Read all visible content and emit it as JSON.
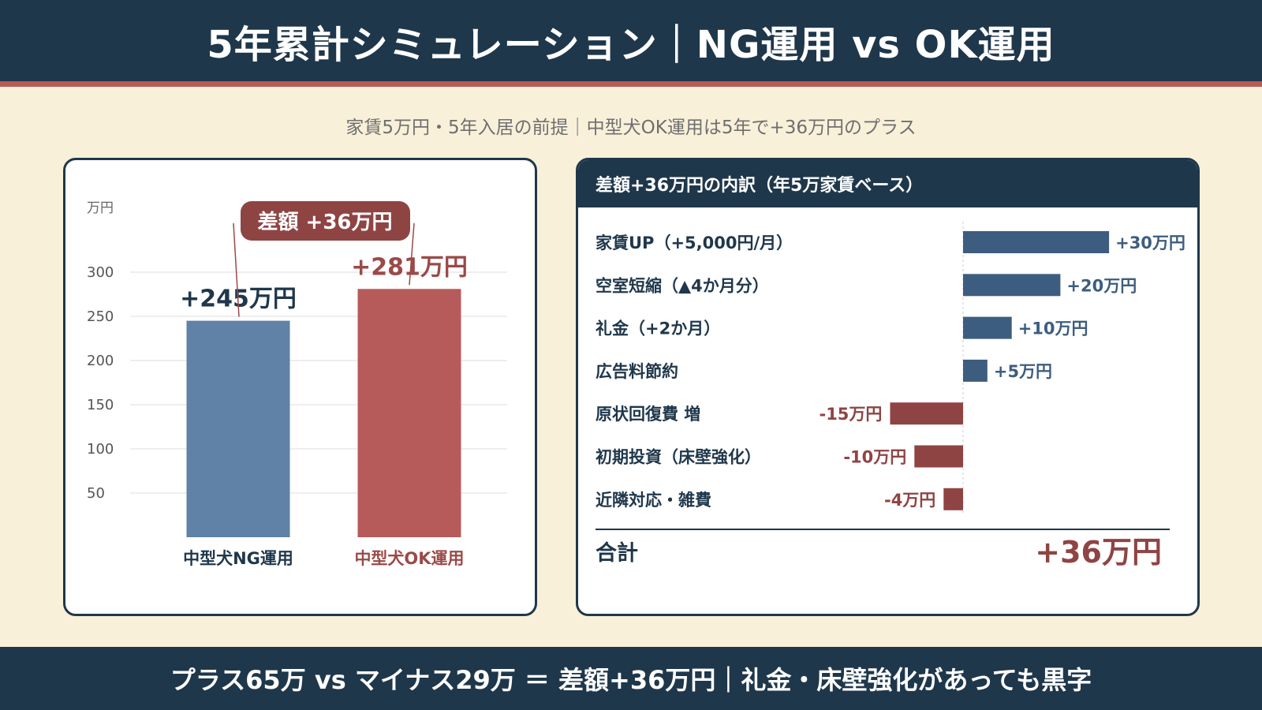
{
  "header": {
    "title": "5年累計シミュレーション｜NG運用 vs OK運用"
  },
  "subtitle": "家賃5万円・5年入居の前提｜中型犬OK運用は5年で+36万円のプラス",
  "left_chart": {
    "unit_label": "万円",
    "diff_badge": "差額 +36万円"
  },
  "right_chart": {
    "header": "差額+36万円の内訳（年5万家賃ベース）",
    "total_label": "合計",
    "total_value": "+36万円"
  },
  "footer": {
    "text": "プラス65万 vs マイナス29万 ＝ 差額+36万円｜礼金・床壁強化があっても黒字"
  },
  "colors": {
    "navy": "#1f374b",
    "blue_bar": "#5f82a6",
    "red_bar": "#b65b59",
    "pos_bar": "#3d5d80",
    "neg_bar": "#8f4444",
    "neg_text": "#8f4444",
    "red_text": "#9a4a48"
  },
  "chart_data": [
    {
      "type": "bar",
      "categories": [
        "中型犬NG運用",
        "中型犬OK運用"
      ],
      "values": [
        245,
        281
      ],
      "value_labels": [
        "+245万円",
        "+281万円"
      ],
      "y_ticks": [
        50,
        100,
        150,
        200,
        250,
        300
      ],
      "ylim": [
        0,
        330
      ],
      "grid": true
    },
    {
      "type": "bar",
      "orientation": "horizontal",
      "categories": [
        "家賃UP（+5,000円/月）",
        "空室短縮（▲4か月分）",
        "礼金（+2か月）",
        "広告料節約",
        "原状回復費 増",
        "初期投資（床壁強化）",
        "近隣対応・雑費"
      ],
      "values": [
        30,
        20,
        10,
        5,
        -15,
        -10,
        -4
      ],
      "value_labels": [
        "+30万円",
        "+20万円",
        "+10万円",
        "+5万円",
        "-15万円",
        "-10万円",
        "-4万円"
      ],
      "xlim": [
        -35,
        32
      ]
    }
  ]
}
